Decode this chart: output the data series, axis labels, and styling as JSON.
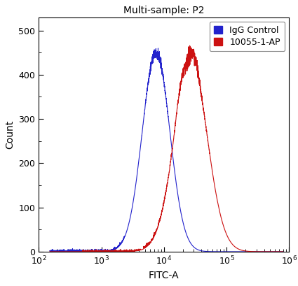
{
  "title": "Multi-sample: P2",
  "xlabel": "FITC-A",
  "ylabel": "Count",
  "xlim": [
    100,
    1000000
  ],
  "ylim": [
    0,
    530
  ],
  "yticks": [
    0,
    100,
    200,
    300,
    400,
    500
  ],
  "xtick_values": [
    100,
    1000,
    10000,
    100000,
    1000000
  ],
  "blue_color": "#2222CC",
  "red_color": "#CC1111",
  "legend_labels": [
    "IgG Control",
    "10055-1-AP"
  ],
  "blue_peak_x": 7500,
  "blue_peak_y": 450,
  "blue_sigma": 0.22,
  "red_peak_x": 27000,
  "red_peak_y": 432,
  "red_sigma": 0.26,
  "bg_color": "#ffffff",
  "title_fontsize": 10,
  "axis_fontsize": 10,
  "tick_fontsize": 9,
  "linewidth": 0.8
}
